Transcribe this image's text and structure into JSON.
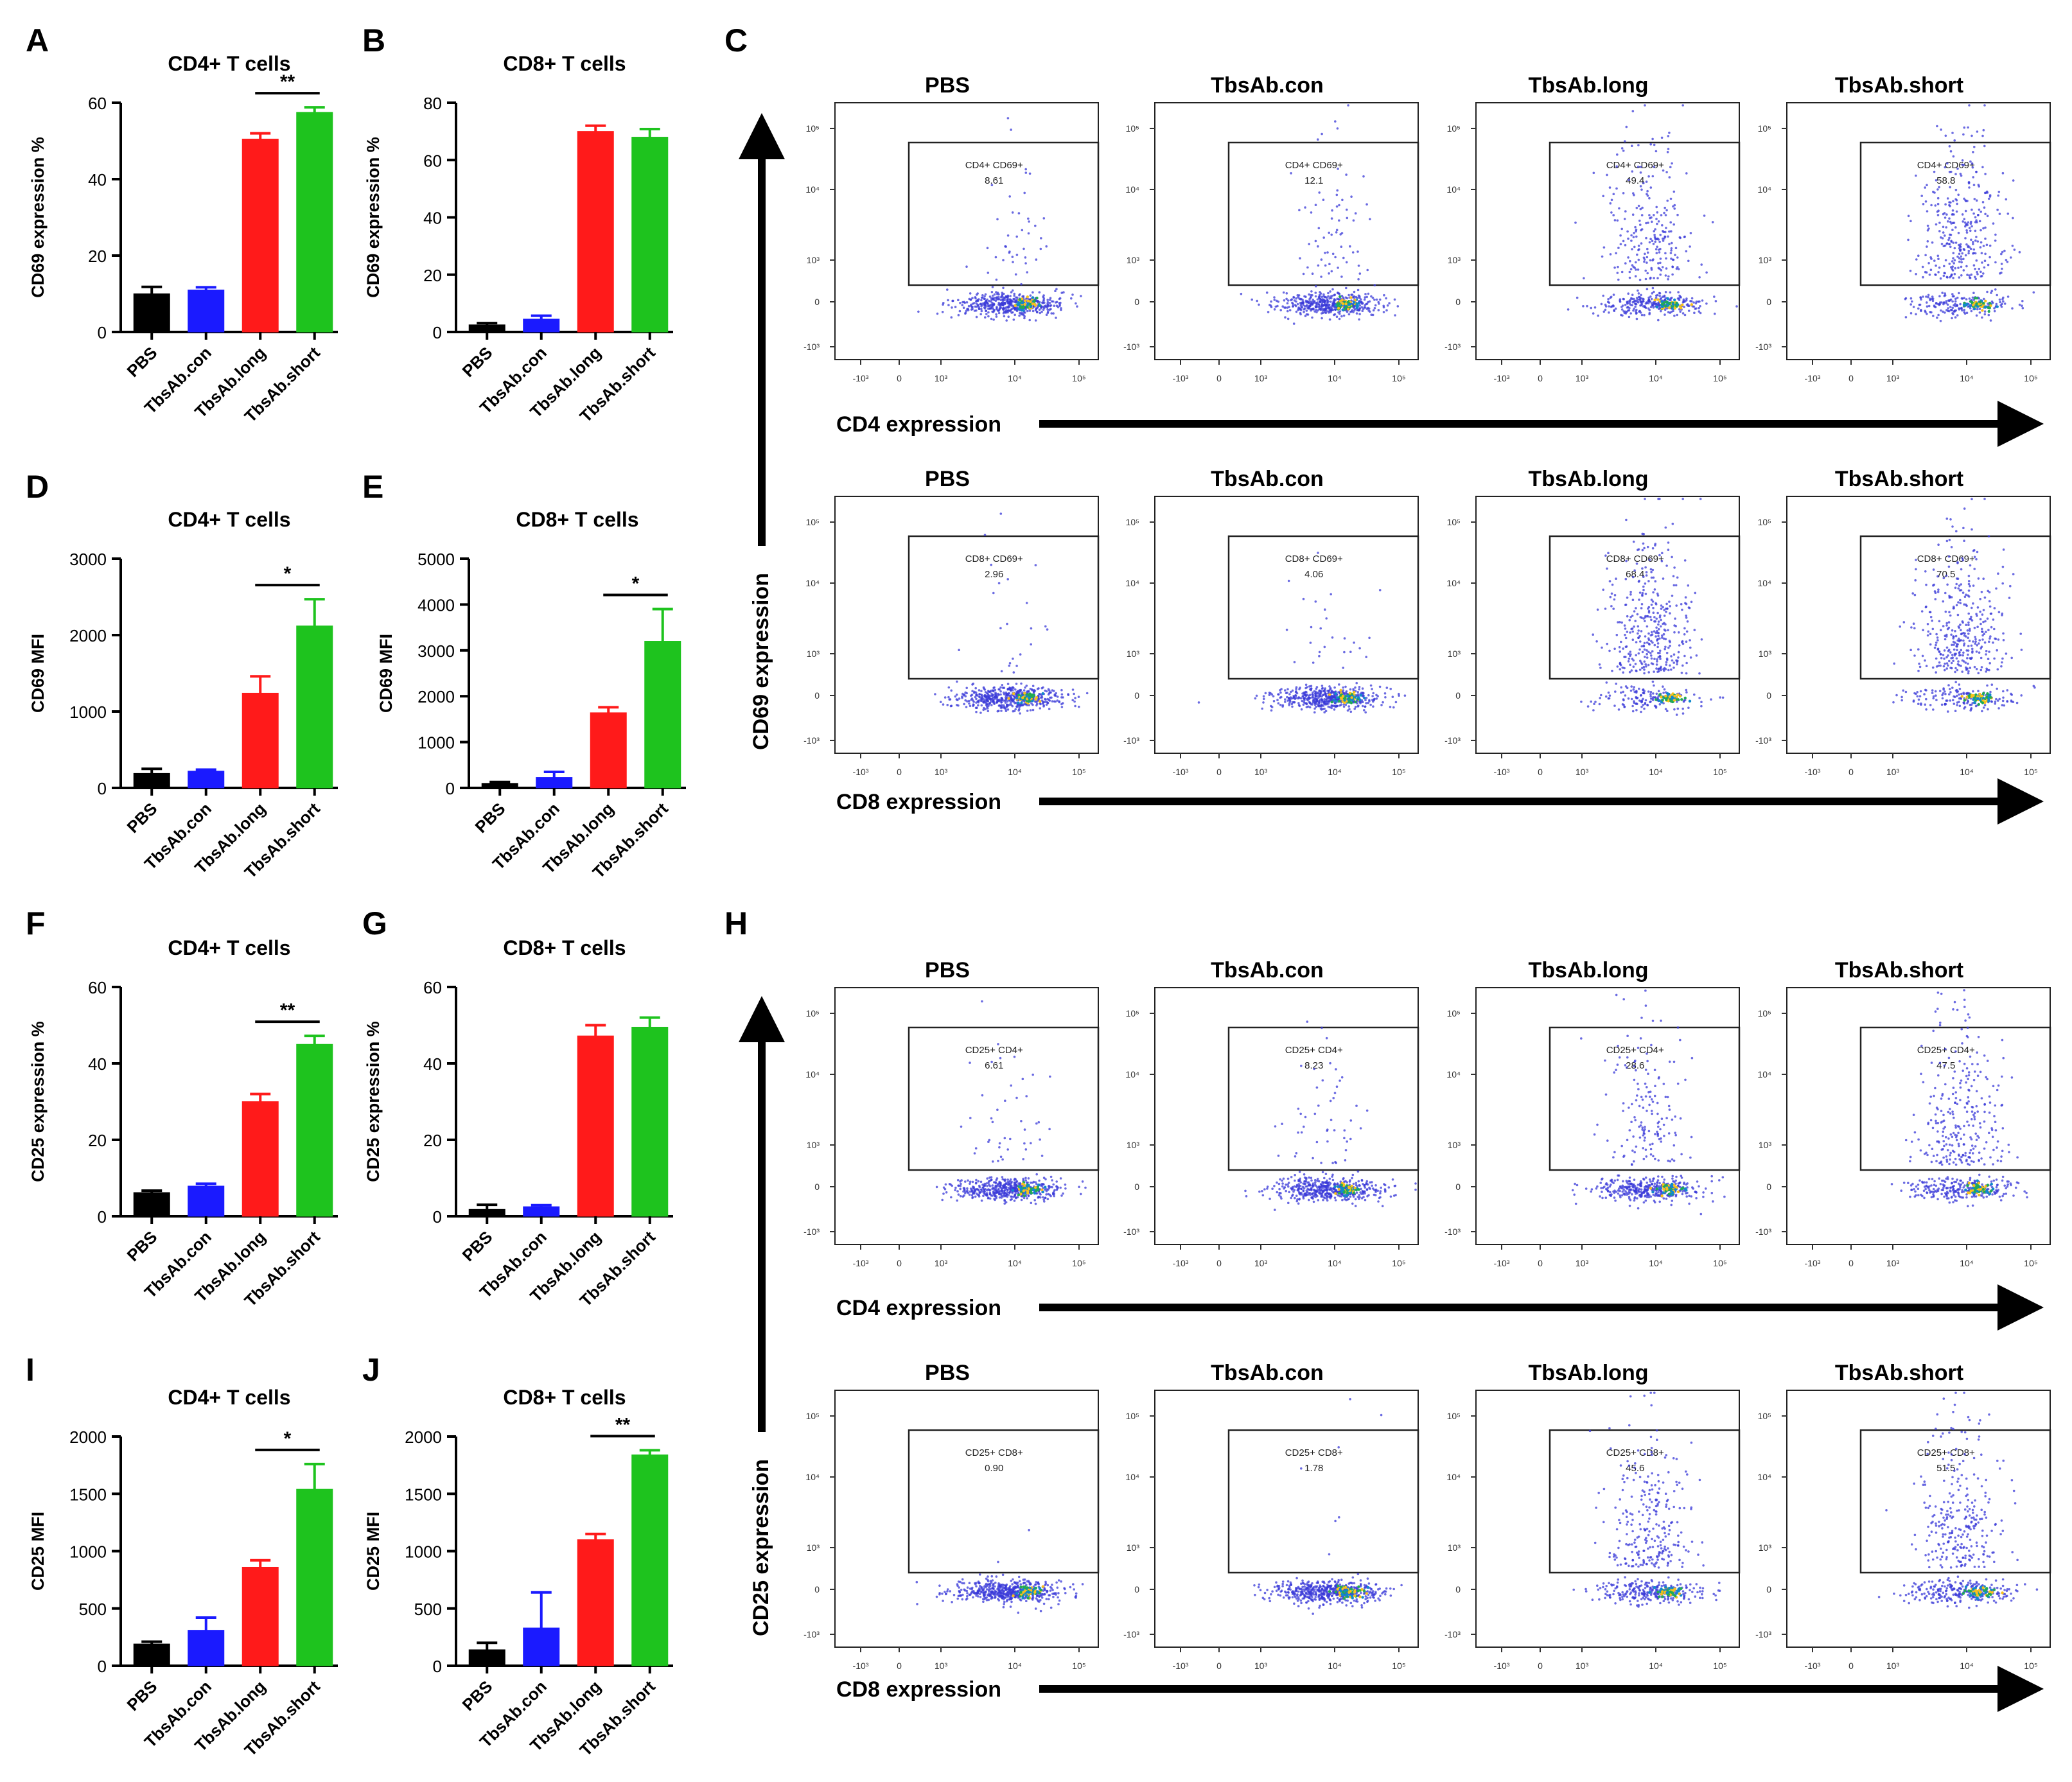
{
  "figure": {
    "colors": {
      "pbs": "#000000",
      "con": "#1a1aff",
      "long": "#ff1a1a",
      "short": "#1ec31e",
      "dot": "#3a3ad8",
      "axis": "#000000"
    },
    "section_labels": {
      "C": "C",
      "H": "H"
    }
  },
  "chart_data": [
    {
      "id": "A",
      "panel": "A",
      "type": "bar",
      "title": "CD4+ T cells",
      "ylabel": "CD69 expression %",
      "ylim": [
        0,
        60
      ],
      "yticks": [
        0,
        20,
        40,
        60
      ],
      "categories": [
        "PBS",
        "TbsAb.con",
        "TbsAb.long",
        "TbsAb.short"
      ],
      "values": [
        10,
        11,
        50.5,
        57.5
      ],
      "errors": [
        1.8,
        0.7,
        1.5,
        1.3
      ],
      "significance": [
        {
          "from": 2,
          "to": 3,
          "label": "**"
        }
      ]
    },
    {
      "id": "B",
      "panel": "B",
      "type": "bar",
      "title": "CD8+ T cells",
      "ylabel": "CD69 expression %",
      "ylim": [
        0,
        80
      ],
      "yticks": [
        0,
        20,
        40,
        60,
        80
      ],
      "categories": [
        "PBS",
        "TbsAb.con",
        "TbsAb.long",
        "TbsAb.short"
      ],
      "values": [
        2.5,
        4.5,
        70,
        68
      ],
      "errors": [
        0.6,
        1.2,
        2.0,
        2.8
      ],
      "significance": []
    },
    {
      "id": "D",
      "panel": "D",
      "type": "bar",
      "title": "CD4+ T cells",
      "ylabel": "CD69 MFI",
      "ylim": [
        0,
        3000
      ],
      "yticks": [
        0,
        1000,
        2000,
        3000
      ],
      "categories": [
        "PBS",
        "TbsAb.con",
        "TbsAb.long",
        "TbsAb.short"
      ],
      "values": [
        190,
        220,
        1240,
        2120
      ],
      "errors": [
        60,
        20,
        220,
        350
      ],
      "significance": [
        {
          "from": 2,
          "to": 3,
          "label": "*"
        }
      ]
    },
    {
      "id": "E",
      "panel": "E",
      "type": "bar",
      "title": "CD8+ T cells",
      "ylabel": "CD69 MFI",
      "ylim": [
        0,
        5000
      ],
      "yticks": [
        0,
        1000,
        2000,
        3000,
        4000,
        5000
      ],
      "categories": [
        "PBS",
        "TbsAb.con",
        "TbsAb.long",
        "TbsAb.short"
      ],
      "values": [
        100,
        230,
        1640,
        3200
      ],
      "errors": [
        30,
        120,
        120,
        700
      ],
      "significance": [
        {
          "from": 2,
          "to": 3,
          "label": "*"
        }
      ]
    },
    {
      "id": "F",
      "panel": "F",
      "type": "bar",
      "title": "CD4+ T cells",
      "ylabel": "CD25 expression %",
      "ylim": [
        0,
        60
      ],
      "yticks": [
        0,
        20,
        40,
        60
      ],
      "categories": [
        "PBS",
        "TbsAb.con",
        "TbsAb.long",
        "TbsAb.short"
      ],
      "values": [
        6.2,
        7.9,
        30,
        45
      ],
      "errors": [
        0.5,
        0.6,
        2.0,
        2.2
      ],
      "significance": [
        {
          "from": 2,
          "to": 3,
          "label": "**"
        }
      ]
    },
    {
      "id": "G",
      "panel": "G",
      "type": "bar",
      "title": "CD8+ T cells",
      "ylabel": "CD25 expression %",
      "ylim": [
        0,
        60
      ],
      "yticks": [
        0,
        20,
        40,
        60
      ],
      "categories": [
        "PBS",
        "TbsAb.con",
        "TbsAb.long",
        "TbsAb.short"
      ],
      "values": [
        1.8,
        2.5,
        47.2,
        49.5
      ],
      "errors": [
        1.2,
        0.4,
        2.8,
        2.5
      ],
      "significance": []
    },
    {
      "id": "I",
      "panel": "I",
      "type": "bar",
      "title": "CD4+ T cells",
      "ylabel": "CD25 MFI",
      "ylim": [
        0,
        2000
      ],
      "yticks": [
        0,
        500,
        1000,
        1500,
        2000
      ],
      "categories": [
        "PBS",
        "TbsAb.con",
        "TbsAb.long",
        "TbsAb.short"
      ],
      "values": [
        190,
        310,
        860,
        1540
      ],
      "errors": [
        20,
        110,
        60,
        220
      ],
      "significance": [
        {
          "from": 2,
          "to": 3,
          "label": "*"
        }
      ]
    },
    {
      "id": "J",
      "panel": "J",
      "type": "bar",
      "title": "CD8+ T cells",
      "ylabel": "CD25 MFI",
      "ylim": [
        0,
        2000
      ],
      "yticks": [
        0,
        500,
        1000,
        1500,
        2000
      ],
      "categories": [
        "PBS",
        "TbsAb.con",
        "TbsAb.long",
        "TbsAb.short"
      ],
      "values": [
        140,
        330,
        1100,
        1840
      ],
      "errors": [
        60,
        310,
        50,
        40
      ],
      "significance": [
        {
          "from": 2,
          "to": 3,
          "label": "**"
        }
      ]
    },
    {
      "id": "C",
      "type": "scatter",
      "panel": "C",
      "y_axis_label": "CD69 expression",
      "rows": [
        {
          "x_axis_label": "CD4 expression",
          "plots": [
            {
              "title": "PBS",
              "gate_label": "CD4+ CD69+",
              "gate_value": "8.61",
              "gate_value_num": 8.61
            },
            {
              "title": "TbsAb.con",
              "gate_label": "CD4+ CD69+",
              "gate_value": "12.1",
              "gate_value_num": 12.1
            },
            {
              "title": "TbsAb.long",
              "gate_label": "CD4+ CD69+",
              "gate_value": "49.4",
              "gate_value_num": 49.4
            },
            {
              "title": "TbsAb.short",
              "gate_label": "CD4+ CD69+",
              "gate_value": "58.8",
              "gate_value_num": 58.8
            }
          ]
        },
        {
          "x_axis_label": "CD8 expression",
          "plots": [
            {
              "title": "PBS",
              "gate_label": "CD8+ CD69+",
              "gate_value": "2.96",
              "gate_value_num": 2.96
            },
            {
              "title": "TbsAb.con",
              "gate_label": "CD8+ CD69+",
              "gate_value": "4.06",
              "gate_value_num": 4.06
            },
            {
              "title": "TbsAb.long",
              "gate_label": "CD8+ CD69+",
              "gate_value": "68.4",
              "gate_value_num": 68.4
            },
            {
              "title": "TbsAb.short",
              "gate_label": "CD8+ CD69+",
              "gate_value": "70.5",
              "gate_value_num": 70.5
            }
          ]
        }
      ],
      "x_ticks": [
        "-10³",
        "0",
        "10³",
        "10⁴",
        "10⁵"
      ],
      "y_ticks": [
        "10⁵",
        "10⁴",
        "10³",
        "0",
        "-10³"
      ]
    },
    {
      "id": "H",
      "type": "scatter",
      "panel": "H",
      "y_axis_label": "CD25 expression",
      "rows": [
        {
          "x_axis_label": "CD4 expression",
          "plots": [
            {
              "title": "PBS",
              "gate_label": "CD25+ CD4+",
              "gate_value": "6.61",
              "gate_value_num": 6.61
            },
            {
              "title": "TbsAb.con",
              "gate_label": "CD25+ CD4+",
              "gate_value": "8.23",
              "gate_value_num": 8.23
            },
            {
              "title": "TbsAb.long",
              "gate_label": "CD25+ CD4+",
              "gate_value": "28.6",
              "gate_value_num": 28.6
            },
            {
              "title": "TbsAb.short",
              "gate_label": "CD25+ CD4+",
              "gate_value": "47.5",
              "gate_value_num": 47.5
            }
          ]
        },
        {
          "x_axis_label": "CD8 expression",
          "plots": [
            {
              "title": "PBS",
              "gate_label": "CD25+ CD8+",
              "gate_value": "0.90",
              "gate_value_num": 0.9
            },
            {
              "title": "TbsAb.con",
              "gate_label": "CD25+ CD8+",
              "gate_value": "1.78",
              "gate_value_num": 1.78
            },
            {
              "title": "TbsAb.long",
              "gate_label": "CD25+ CD8+",
              "gate_value": "45.6",
              "gate_value_num": 45.6
            },
            {
              "title": "TbsAb.short",
              "gate_label": "CD25+ CD8+",
              "gate_value": "51.5",
              "gate_value_num": 51.5
            }
          ]
        }
      ],
      "x_ticks": [
        "-10³",
        "0",
        "10³",
        "10⁴",
        "10⁵"
      ],
      "y_ticks": [
        "10⁵",
        "10⁴",
        "10³",
        "0",
        "-10³"
      ]
    }
  ]
}
